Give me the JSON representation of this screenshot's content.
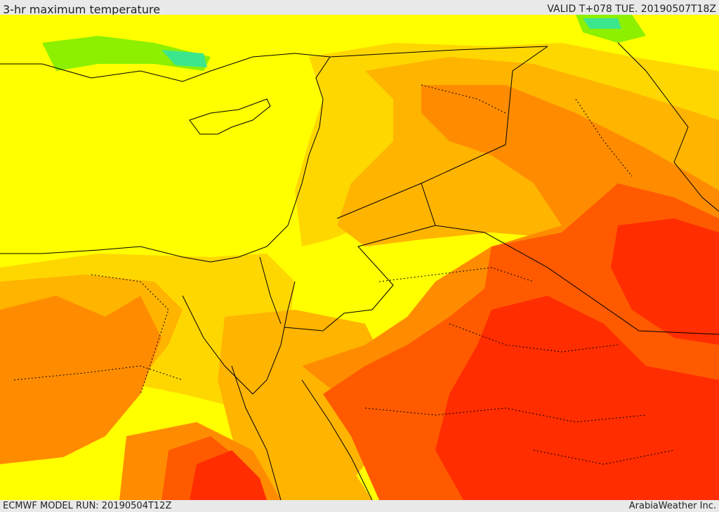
{
  "header": {
    "title": "3-hr maximum temperature",
    "valid": "VALID T+078 TUE. 20190507T18Z"
  },
  "footer": {
    "model_run": "ECMWF MODEL RUN: 20190504T12Z",
    "credit": "ArabiaWeather Inc."
  },
  "map": {
    "palette": {
      "sea": "#ffff00",
      "cool": "#8cf000",
      "coolest": "#3ce68c",
      "light_amber": "#ffd700",
      "amber": "#ffb400",
      "orange": "#ff8c00",
      "deep_orange": "#ff5a00",
      "red": "#ff2d00"
    },
    "boundary_color": "#000000"
  }
}
